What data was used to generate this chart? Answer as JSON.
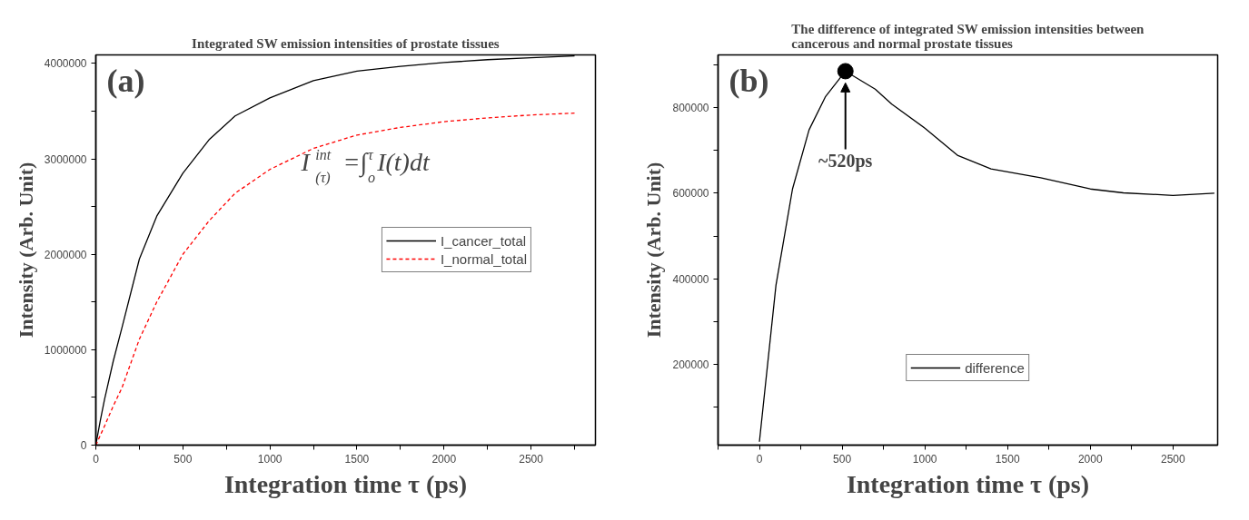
{
  "chart_data": [
    {
      "type": "line",
      "title": "Integrated SW emission intensities of prostate tissues",
      "xlabel": "Integration time τ (ps)",
      "ylabel": "Intensity (Arb. Unit)",
      "x": [
        0,
        25,
        50,
        100,
        150,
        250,
        350,
        500,
        650,
        800,
        1000,
        1250,
        1500,
        1750,
        2000,
        2250,
        2500,
        2750
      ],
      "series": [
        {
          "name": "I_cancer_total",
          "color": "#000000",
          "line_style": "solid",
          "values": [
            0,
            250000,
            480000,
            880000,
            1230000,
            1950000,
            2400000,
            2850000,
            3200000,
            3450000,
            3640000,
            3820000,
            3920000,
            3970000,
            4010000,
            4040000,
            4060000,
            4080000
          ]
        },
        {
          "name": "I_normal_total",
          "color": "#ff0000",
          "line_style": "dashed",
          "values": [
            0,
            100000,
            200000,
            410000,
            600000,
            1110000,
            1500000,
            2000000,
            2350000,
            2640000,
            2890000,
            3110000,
            3250000,
            3330000,
            3390000,
            3430000,
            3460000,
            3480000
          ]
        }
      ],
      "annotations": [
        "(a)",
        "I$^{int}$$_{(τ)}$=∫$^{τ}$$_{o}$I(t)dt"
      ],
      "xlim": [
        0,
        2870
      ],
      "ylim": [
        0,
        4090000
      ],
      "xticks": [
        0,
        {
          "value": 250,
          "label": null
        },
        500,
        {
          "value": 750,
          "label": null
        },
        1000,
        {
          "value": 1250,
          "label": null
        },
        1500,
        {
          "value": 1750,
          "label": null
        },
        2000,
        {
          "value": 2250,
          "label": null
        },
        2500,
        {
          "value": 2750,
          "label": null
        }
      ],
      "yticks": [
        0,
        {
          "value": 500000,
          "label": null
        },
        1000000,
        {
          "value": 1500000,
          "label": null
        },
        2000000,
        {
          "value": 2500000,
          "label": null
        },
        3000000,
        {
          "value": 3500000,
          "label": null
        },
        4000000
      ],
      "legend": "right",
      "grid": false
    },
    {
      "type": "line",
      "title": "The difference of integrated SW emission intensities between cancerous and normal prostate tissues",
      "xlabel": "Integration time τ (ps)",
      "ylabel": "Intensity (Arb. Unit)",
      "x": [
        0,
        100,
        200,
        300,
        400,
        520,
        700,
        800,
        1000,
        1200,
        1400,
        1700,
        2000,
        2200,
        2500,
        2750
      ],
      "series": [
        {
          "name": "difference",
          "color": "#000000",
          "values": [
            20000,
            385000,
            610000,
            748000,
            826000,
            885000,
            843000,
            808000,
            752000,
            688000,
            657000,
            636000,
            610000,
            601000,
            595000,
            600000
          ]
        },
        {
          "type": "scatter",
          "color": "#000000",
          "marker": "circle",
          "x": [
            520
          ],
          "values": [
            885000
          ]
        }
      ],
      "annotations": [
        "(b)",
        "~520ps"
      ],
      "xlim": [
        -250,
        2770
      ],
      "ylim": [
        12000,
        923000
      ],
      "xticks": [
        {
          "value": -250,
          "label": null
        },
        0,
        {
          "value": 250,
          "label": null
        },
        500,
        {
          "value": 750,
          "label": null
        },
        1000,
        {
          "value": 1250,
          "label": null
        },
        1500,
        {
          "value": 1750,
          "label": null
        },
        2000,
        {
          "value": 2250,
          "label": null
        },
        2500
      ],
      "yticks": [
        {
          "value": 100000,
          "label": null
        },
        200000,
        {
          "value": 300000,
          "label": null
        },
        400000,
        {
          "value": 500000,
          "label": null
        },
        600000,
        {
          "value": 700000,
          "label": null
        },
        800000,
        {
          "value": 900000,
          "label": null
        }
      ],
      "legend": "bottom",
      "grid": false
    }
  ]
}
